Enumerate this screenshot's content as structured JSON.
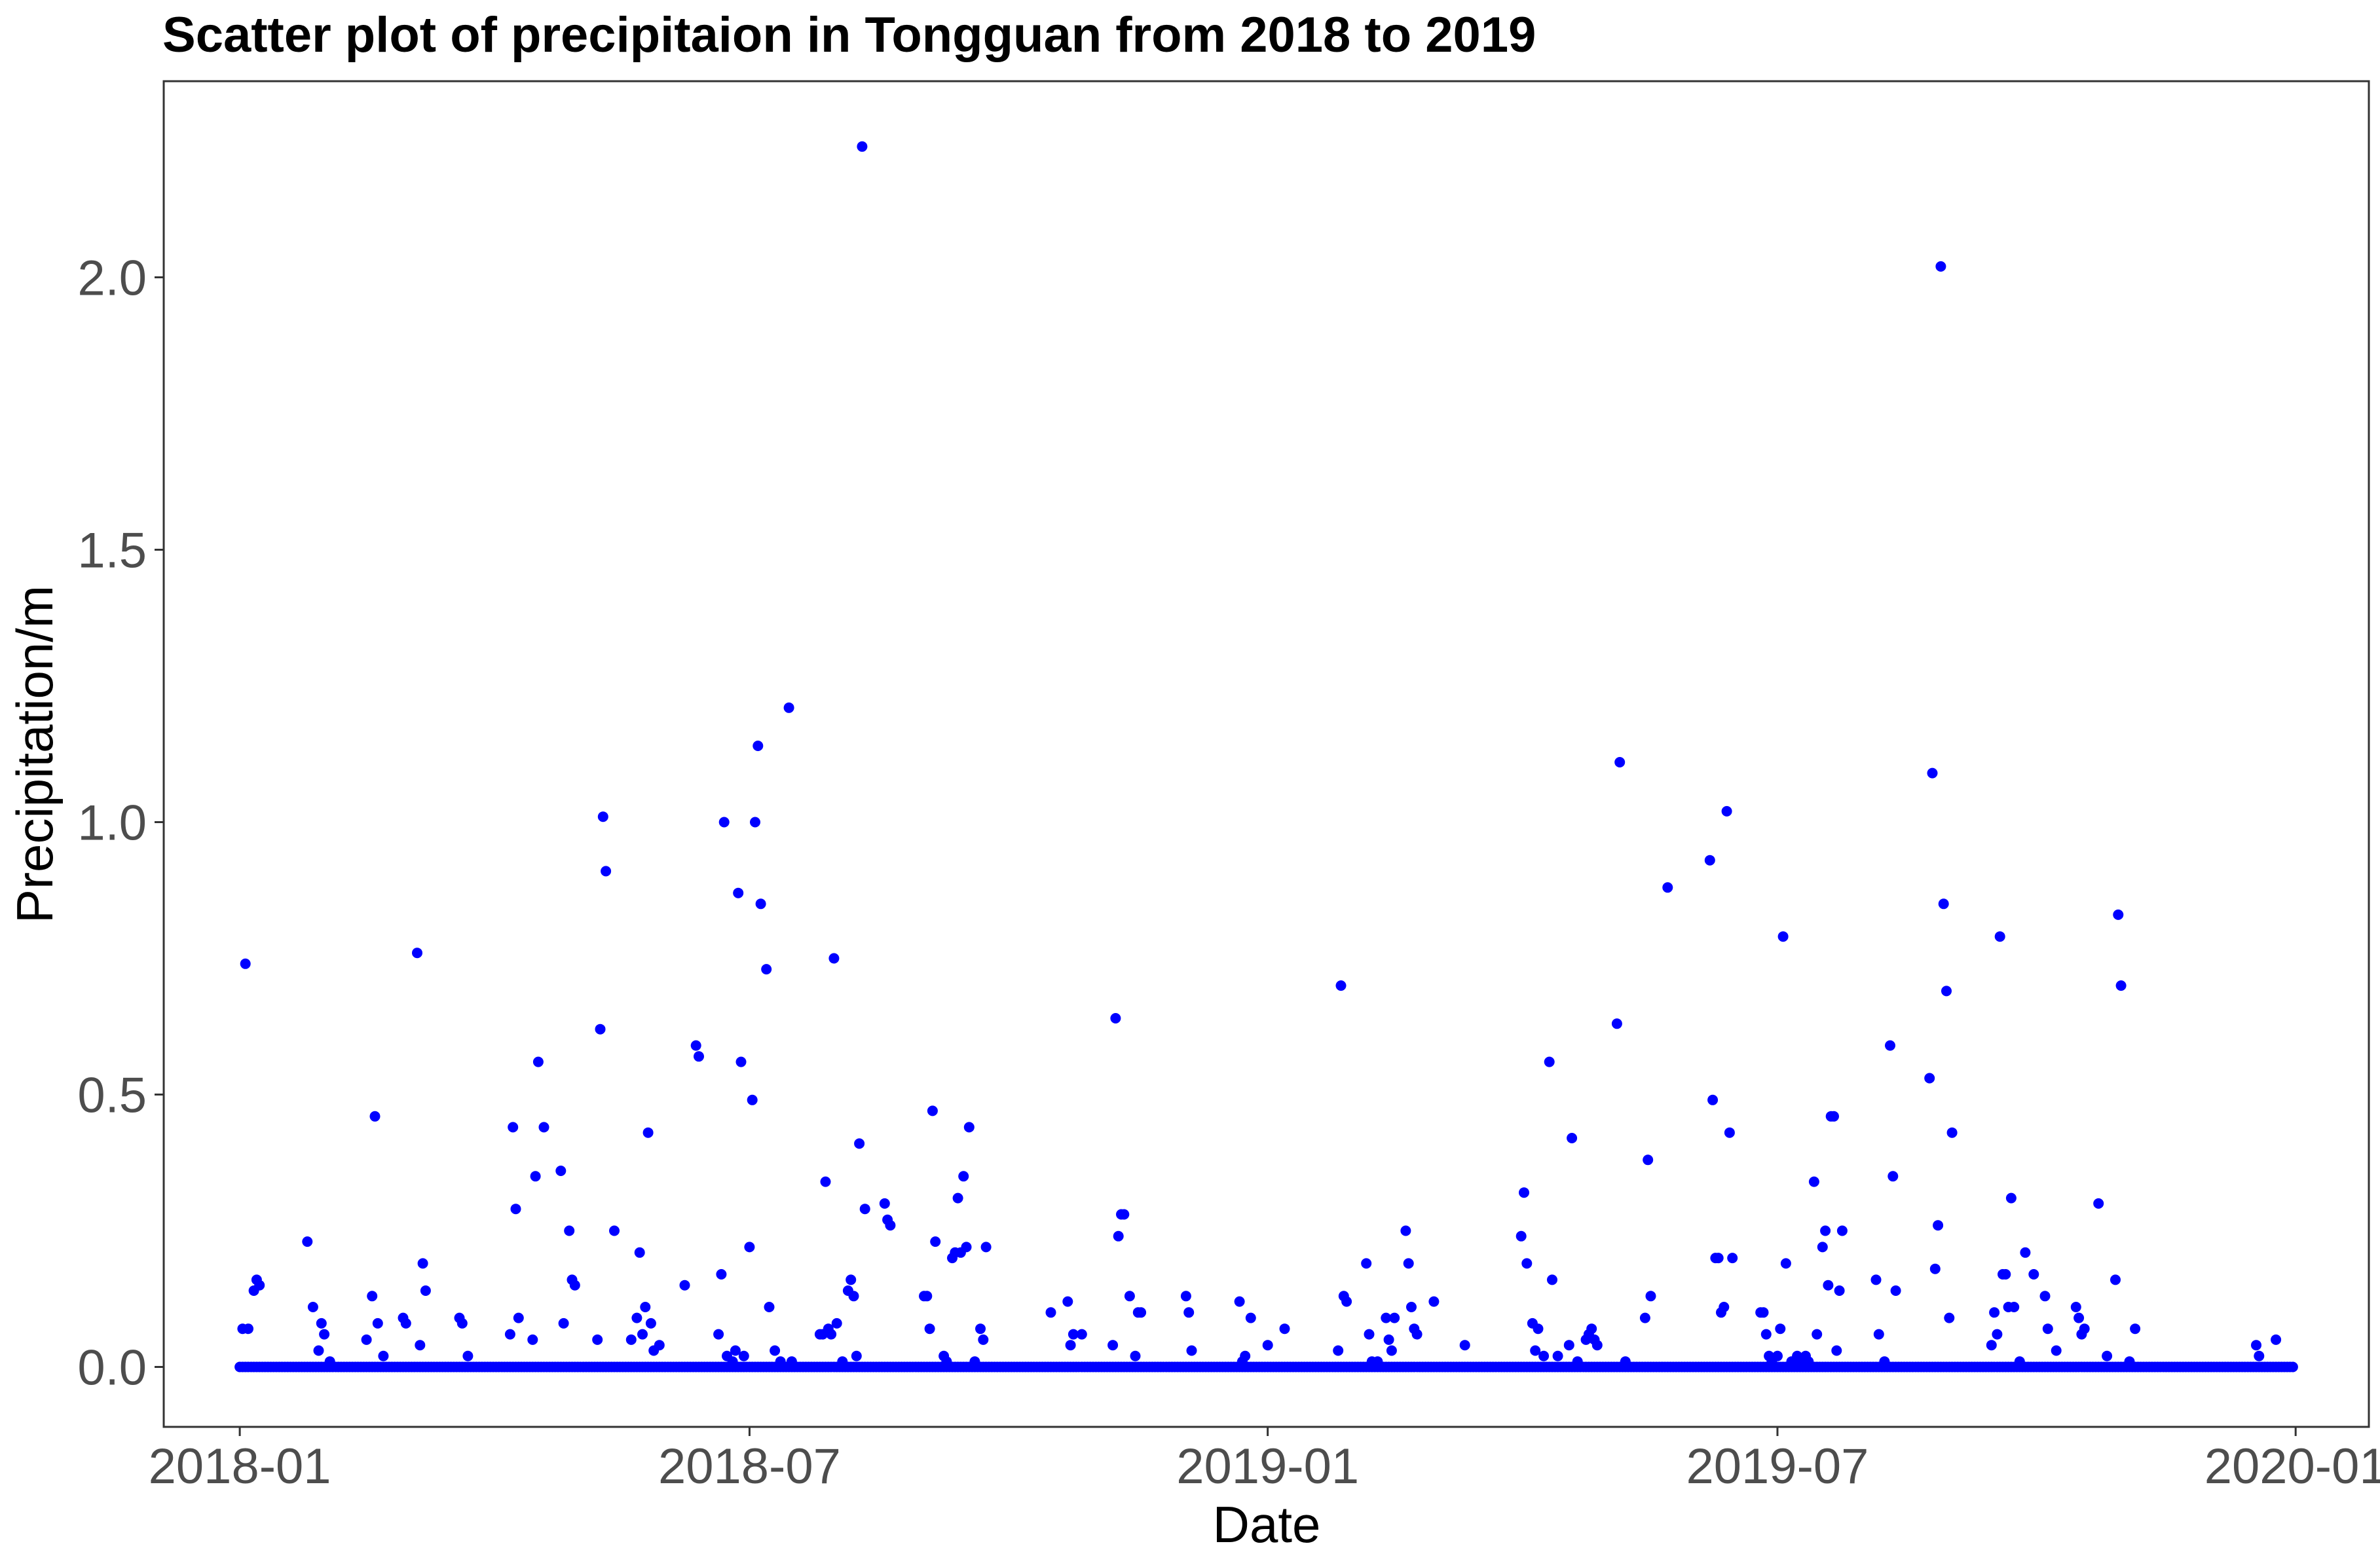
{
  "chart_data": {
    "type": "scatter",
    "title": "Scatter plot of precipitaion in Tongguan from 2018 to 2019",
    "xlabel": "Date",
    "ylabel": "Precipitation/m",
    "x_range": [
      "2017-12-05",
      "2020-01-27"
    ],
    "ylim": [
      -0.11,
      2.36
    ],
    "x_ticks": [
      "2018-01",
      "2018-07",
      "2019-01",
      "2019-07",
      "2020-01"
    ],
    "y_ticks": [
      "0.0",
      "0.5",
      "1.0",
      "1.5",
      "2.0"
    ],
    "grid": false,
    "point_color": "#0000ff",
    "baseline": {
      "start": "2018-01-01",
      "end": "2019-12-31",
      "value": 0.0
    },
    "points": [
      [
        "2018-01-02",
        0.07
      ],
      [
        "2018-01-03",
        0.74
      ],
      [
        "2018-01-04",
        0.07
      ],
      [
        "2018-01-06",
        0.14
      ],
      [
        "2018-01-07",
        0.16
      ],
      [
        "2018-01-08",
        0.15
      ],
      [
        "2018-01-25",
        0.23
      ],
      [
        "2018-01-27",
        0.11
      ],
      [
        "2018-01-29",
        0.03
      ],
      [
        "2018-01-30",
        0.08
      ],
      [
        "2018-01-31",
        0.06
      ],
      [
        "2018-02-02",
        0.01
      ],
      [
        "2018-02-15",
        0.05
      ],
      [
        "2018-02-17",
        0.13
      ],
      [
        "2018-02-18",
        0.46
      ],
      [
        "2018-02-19",
        0.08
      ],
      [
        "2018-02-21",
        0.02
      ],
      [
        "2018-02-28",
        0.09
      ],
      [
        "2018-03-01",
        0.08
      ],
      [
        "2018-03-05",
        0.76
      ],
      [
        "2018-03-06",
        0.04
      ],
      [
        "2018-03-07",
        0.19
      ],
      [
        "2018-03-08",
        0.14
      ],
      [
        "2018-03-20",
        0.09
      ],
      [
        "2018-03-21",
        0.08
      ],
      [
        "2018-03-23",
        0.02
      ],
      [
        "2018-04-07",
        0.06
      ],
      [
        "2018-04-08",
        0.44
      ],
      [
        "2018-04-09",
        0.29
      ],
      [
        "2018-04-10",
        0.09
      ],
      [
        "2018-04-15",
        0.05
      ],
      [
        "2018-04-16",
        0.35
      ],
      [
        "2018-04-17",
        0.56
      ],
      [
        "2018-04-19",
        0.44
      ],
      [
        "2018-04-25",
        0.36
      ],
      [
        "2018-04-26",
        0.08
      ],
      [
        "2018-04-28",
        0.25
      ],
      [
        "2018-04-29",
        0.16
      ],
      [
        "2018-04-30",
        0.15
      ],
      [
        "2018-05-08",
        0.05
      ],
      [
        "2018-05-09",
        0.62
      ],
      [
        "2018-05-10",
        1.01
      ],
      [
        "2018-05-11",
        0.91
      ],
      [
        "2018-05-14",
        0.25
      ],
      [
        "2018-05-20",
        0.05
      ],
      [
        "2018-05-22",
        0.09
      ],
      [
        "2018-05-23",
        0.21
      ],
      [
        "2018-05-24",
        0.06
      ],
      [
        "2018-05-25",
        0.11
      ],
      [
        "2018-05-26",
        0.43
      ],
      [
        "2018-05-27",
        0.08
      ],
      [
        "2018-05-28",
        0.03
      ],
      [
        "2018-05-30",
        0.04
      ],
      [
        "2018-06-08",
        0.15
      ],
      [
        "2018-06-12",
        0.59
      ],
      [
        "2018-06-13",
        0.57
      ],
      [
        "2018-06-20",
        0.06
      ],
      [
        "2018-06-21",
        0.17
      ],
      [
        "2018-06-22",
        1.0
      ],
      [
        "2018-06-23",
        0.02
      ],
      [
        "2018-06-25",
        0.01
      ],
      [
        "2018-06-26",
        0.03
      ],
      [
        "2018-06-27",
        0.87
      ],
      [
        "2018-06-28",
        0.56
      ],
      [
        "2018-06-29",
        0.02
      ],
      [
        "2018-07-01",
        0.22
      ],
      [
        "2018-07-02",
        0.49
      ],
      [
        "2018-07-03",
        1.0
      ],
      [
        "2018-07-04",
        1.14
      ],
      [
        "2018-07-05",
        0.85
      ],
      [
        "2018-07-07",
        0.73
      ],
      [
        "2018-07-08",
        0.11
      ],
      [
        "2018-07-10",
        0.03
      ],
      [
        "2018-07-12",
        0.01
      ],
      [
        "2018-07-15",
        1.21
      ],
      [
        "2018-07-16",
        0.01
      ],
      [
        "2018-07-26",
        0.06
      ],
      [
        "2018-07-27",
        0.06
      ],
      [
        "2018-07-28",
        0.34
      ],
      [
        "2018-07-29",
        0.07
      ],
      [
        "2018-07-30",
        0.06
      ],
      [
        "2018-07-31",
        0.75
      ],
      [
        "2018-08-01",
        0.08
      ],
      [
        "2018-08-03",
        0.01
      ],
      [
        "2018-08-05",
        0.14
      ],
      [
        "2018-08-06",
        0.16
      ],
      [
        "2018-08-07",
        0.13
      ],
      [
        "2018-08-08",
        0.02
      ],
      [
        "2018-08-09",
        0.41
      ],
      [
        "2018-08-10",
        2.24
      ],
      [
        "2018-08-11",
        0.29
      ],
      [
        "2018-08-18",
        0.3
      ],
      [
        "2018-08-19",
        0.27
      ],
      [
        "2018-08-20",
        0.26
      ],
      [
        "2018-09-01",
        0.13
      ],
      [
        "2018-09-02",
        0.13
      ],
      [
        "2018-09-03",
        0.07
      ],
      [
        "2018-09-04",
        0.47
      ],
      [
        "2018-09-05",
        0.23
      ],
      [
        "2018-09-08",
        0.02
      ],
      [
        "2018-09-09",
        0.01
      ],
      [
        "2018-09-11",
        0.2
      ],
      [
        "2018-09-12",
        0.21
      ],
      [
        "2018-09-13",
        0.31
      ],
      [
        "2018-09-14",
        0.21
      ],
      [
        "2018-09-15",
        0.35
      ],
      [
        "2018-09-16",
        0.22
      ],
      [
        "2018-09-17",
        0.44
      ],
      [
        "2018-09-19",
        0.01
      ],
      [
        "2018-09-21",
        0.07
      ],
      [
        "2018-09-22",
        0.05
      ],
      [
        "2018-09-23",
        0.22
      ],
      [
        "2018-10-16",
        0.1
      ],
      [
        "2018-10-22",
        0.12
      ],
      [
        "2018-10-23",
        0.04
      ],
      [
        "2018-10-24",
        0.06
      ],
      [
        "2018-10-27",
        0.06
      ],
      [
        "2018-11-07",
        0.04
      ],
      [
        "2018-11-08",
        0.64
      ],
      [
        "2018-11-09",
        0.24
      ],
      [
        "2018-11-10",
        0.28
      ],
      [
        "2018-11-11",
        0.28
      ],
      [
        "2018-11-13",
        0.13
      ],
      [
        "2018-11-15",
        0.02
      ],
      [
        "2018-11-16",
        0.1
      ],
      [
        "2018-11-17",
        0.1
      ],
      [
        "2018-12-03",
        0.13
      ],
      [
        "2018-12-04",
        0.1
      ],
      [
        "2018-12-05",
        0.03
      ],
      [
        "2018-12-22",
        0.12
      ],
      [
        "2018-12-23",
        0.01
      ],
      [
        "2018-12-24",
        0.02
      ],
      [
        "2018-12-26",
        0.09
      ],
      [
        "2019-01-01",
        0.04
      ],
      [
        "2019-01-07",
        0.07
      ],
      [
        "2019-01-26",
        0.03
      ],
      [
        "2019-01-27",
        0.7
      ],
      [
        "2019-01-28",
        0.13
      ],
      [
        "2019-01-29",
        0.12
      ],
      [
        "2019-02-05",
        0.19
      ],
      [
        "2019-02-06",
        0.06
      ],
      [
        "2019-02-07",
        0.01
      ],
      [
        "2019-02-09",
        0.01
      ],
      [
        "2019-02-12",
        0.09
      ],
      [
        "2019-02-13",
        0.05
      ],
      [
        "2019-02-14",
        0.03
      ],
      [
        "2019-02-15",
        0.09
      ],
      [
        "2019-02-19",
        0.25
      ],
      [
        "2019-02-20",
        0.19
      ],
      [
        "2019-02-21",
        0.11
      ],
      [
        "2019-02-22",
        0.07
      ],
      [
        "2019-02-23",
        0.06
      ],
      [
        "2019-03-01",
        0.12
      ],
      [
        "2019-03-12",
        0.04
      ],
      [
        "2019-04-01",
        0.24
      ],
      [
        "2019-04-02",
        0.32
      ],
      [
        "2019-04-03",
        0.19
      ],
      [
        "2019-04-05",
        0.08
      ],
      [
        "2019-04-06",
        0.03
      ],
      [
        "2019-04-07",
        0.07
      ],
      [
        "2019-04-09",
        0.02
      ],
      [
        "2019-04-11",
        0.56
      ],
      [
        "2019-04-12",
        0.16
      ],
      [
        "2019-04-14",
        0.02
      ],
      [
        "2019-04-18",
        0.04
      ],
      [
        "2019-04-19",
        0.42
      ],
      [
        "2019-04-21",
        0.01
      ],
      [
        "2019-04-24",
        0.05
      ],
      [
        "2019-04-25",
        0.06
      ],
      [
        "2019-04-26",
        0.07
      ],
      [
        "2019-04-27",
        0.05
      ],
      [
        "2019-04-28",
        0.04
      ],
      [
        "2019-05-05",
        0.63
      ],
      [
        "2019-05-06",
        1.11
      ],
      [
        "2019-05-08",
        0.01
      ],
      [
        "2019-05-15",
        0.09
      ],
      [
        "2019-05-16",
        0.38
      ],
      [
        "2019-05-17",
        0.13
      ],
      [
        "2019-05-23",
        0.88
      ],
      [
        "2019-06-07",
        0.93
      ],
      [
        "2019-06-08",
        0.49
      ],
      [
        "2019-06-09",
        0.2
      ],
      [
        "2019-06-10",
        0.2
      ],
      [
        "2019-06-11",
        0.1
      ],
      [
        "2019-06-12",
        0.11
      ],
      [
        "2019-06-13",
        1.02
      ],
      [
        "2019-06-14",
        0.43
      ],
      [
        "2019-06-15",
        0.2
      ],
      [
        "2019-06-25",
        0.1
      ],
      [
        "2019-06-26",
        0.1
      ],
      [
        "2019-06-27",
        0.06
      ],
      [
        "2019-06-28",
        0.02
      ],
      [
        "2019-06-29",
        0.01
      ],
      [
        "2019-07-01",
        0.02
      ],
      [
        "2019-07-02",
        0.07
      ],
      [
        "2019-07-03",
        0.79
      ],
      [
        "2019-07-04",
        0.19
      ],
      [
        "2019-07-06",
        0.01
      ],
      [
        "2019-07-08",
        0.02
      ],
      [
        "2019-07-09",
        0.01
      ],
      [
        "2019-07-11",
        0.02
      ],
      [
        "2019-07-12",
        0.01
      ],
      [
        "2019-07-14",
        0.34
      ],
      [
        "2019-07-15",
        0.06
      ],
      [
        "2019-07-17",
        0.22
      ],
      [
        "2019-07-18",
        0.25
      ],
      [
        "2019-07-19",
        0.15
      ],
      [
        "2019-07-20",
        0.46
      ],
      [
        "2019-07-21",
        0.46
      ],
      [
        "2019-07-22",
        0.03
      ],
      [
        "2019-07-23",
        0.14
      ],
      [
        "2019-07-24",
        0.25
      ],
      [
        "2019-08-05",
        0.16
      ],
      [
        "2019-08-06",
        0.06
      ],
      [
        "2019-08-08",
        0.01
      ],
      [
        "2019-08-10",
        0.59
      ],
      [
        "2019-08-11",
        0.35
      ],
      [
        "2019-08-12",
        0.14
      ],
      [
        "2019-08-24",
        0.53
      ],
      [
        "2019-08-25",
        1.09
      ],
      [
        "2019-08-26",
        0.18
      ],
      [
        "2019-08-27",
        0.26
      ],
      [
        "2019-08-28",
        2.02
      ],
      [
        "2019-08-29",
        0.85
      ],
      [
        "2019-08-30",
        0.69
      ],
      [
        "2019-08-31",
        0.09
      ],
      [
        "2019-09-01",
        0.43
      ],
      [
        "2019-09-15",
        0.04
      ],
      [
        "2019-09-16",
        0.1
      ],
      [
        "2019-09-17",
        0.06
      ],
      [
        "2019-09-18",
        0.79
      ],
      [
        "2019-09-19",
        0.17
      ],
      [
        "2019-09-20",
        0.17
      ],
      [
        "2019-09-21",
        0.11
      ],
      [
        "2019-09-22",
        0.31
      ],
      [
        "2019-09-23",
        0.11
      ],
      [
        "2019-09-25",
        0.01
      ],
      [
        "2019-09-27",
        0.21
      ],
      [
        "2019-09-30",
        0.17
      ],
      [
        "2019-10-04",
        0.13
      ],
      [
        "2019-10-05",
        0.07
      ],
      [
        "2019-10-08",
        0.03
      ],
      [
        "2019-10-15",
        0.11
      ],
      [
        "2019-10-16",
        0.09
      ],
      [
        "2019-10-17",
        0.06
      ],
      [
        "2019-10-18",
        0.07
      ],
      [
        "2019-10-23",
        0.3
      ],
      [
        "2019-10-26",
        0.02
      ],
      [
        "2019-10-29",
        0.16
      ],
      [
        "2019-10-30",
        0.83
      ],
      [
        "2019-10-31",
        0.7
      ],
      [
        "2019-11-03",
        0.01
      ],
      [
        "2019-11-05",
        0.07
      ],
      [
        "2019-12-18",
        0.04
      ],
      [
        "2019-12-19",
        0.02
      ],
      [
        "2019-12-25",
        0.05
      ]
    ]
  }
}
